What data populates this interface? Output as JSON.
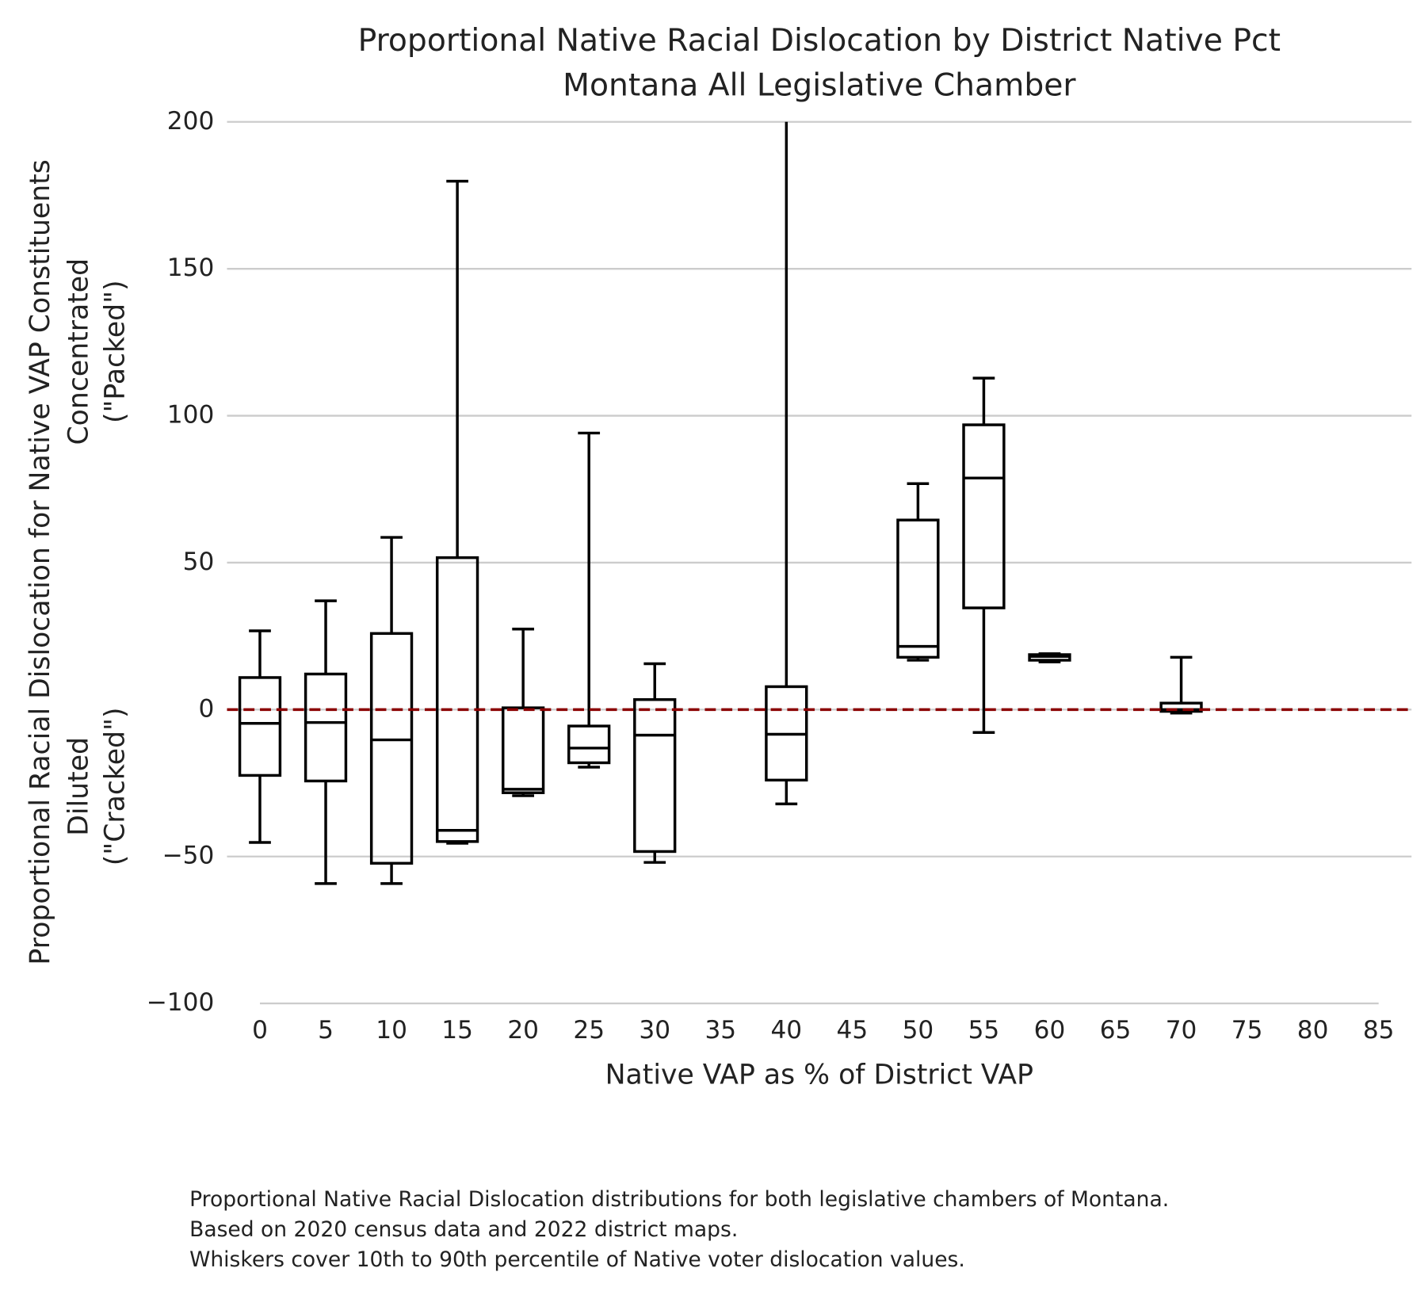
{
  "chart_data": {
    "type": "box",
    "title": "Proportional Native Racial Dislocation by District Native Pct",
    "subtitle": "Montana All Legislative Chamber",
    "x_label": "Native VAP as % of District VAP",
    "y_label": "Proportional Racial Dislocation for Native VAP Constituents",
    "upper_label": [
      "Concentrated",
      "(\"Packed\")"
    ],
    "lower_label": [
      "Diluted",
      "(\"Cracked\")"
    ],
    "notes": [
      "Proportional Native Racial Dislocation distributions for both legislative chambers of Montana.",
      "Based on 2020 census data and 2022 district maps.",
      "Whiskers cover 10th to 90th percentile of Native voter dislocation values."
    ],
    "xlim": [
      -2.5,
      87.5
    ],
    "xticks": [
      0,
      5,
      10,
      15,
      20,
      25,
      30,
      35,
      40,
      45,
      50,
      55,
      60,
      65,
      70,
      75,
      80,
      85
    ],
    "ylim": [
      -100,
      200
    ],
    "yticks": [
      {
        "value": -100,
        "label": "−100"
      },
      {
        "value": -50,
        "label": "−50"
      },
      0,
      50,
      100,
      150,
      200
    ],
    "grid": true,
    "reference_line": {
      "value": 0,
      "color": "#8b0000"
    },
    "color": "#000000",
    "boxes": [
      {
        "x": 0,
        "whislo": -45.2,
        "q1": -22.4,
        "med": -4.7,
        "q3": 10.9,
        "whishi": 26.8
      },
      {
        "x": 5,
        "whislo": -59.2,
        "q1": -24.3,
        "med": -4.4,
        "q3": 12.1,
        "whishi": 37
      },
      {
        "x": 10,
        "whislo": -59.2,
        "q1": -52.3,
        "med": -10.3,
        "q3": 25.9,
        "whishi": 58.6
      },
      {
        "x": 15,
        "whislo": -45.5,
        "q1": -44.9,
        "med": -41.1,
        "q3": 51.7,
        "whishi": 179.8
      },
      {
        "x": 20,
        "whislo": -29.3,
        "q1": -28.3,
        "med": -27.1,
        "q3": 0.6,
        "whishi": 27.4
      },
      {
        "x": 25,
        "whislo": -19.6,
        "q1": -18.1,
        "med": -13.1,
        "q3": -5.6,
        "whishi": 94.1
      },
      {
        "x": 30,
        "whislo": -52,
        "q1": -48.3,
        "med": -8.7,
        "q3": 3.4,
        "whishi": 15.6
      },
      {
        "x": 40,
        "whislo": -32.1,
        "q1": -24,
        "med": -8.4,
        "q3": 7.8,
        "whishi": 215
      },
      {
        "x": 50,
        "whislo": 16.8,
        "q1": 17.8,
        "med": 21.5,
        "q3": 64.5,
        "whishi": 76.9
      },
      {
        "x": 55,
        "whislo": -7.8,
        "q1": 34.6,
        "med": 78.8,
        "q3": 96.9,
        "whishi": 112.8
      },
      {
        "x": 60,
        "whislo": 16.2,
        "q1": 16.8,
        "med": 18.1,
        "q3": 18.7,
        "whishi": 19
      },
      {
        "x": 70,
        "whislo": -1.2,
        "q1": -0.6,
        "med": 0,
        "q3": 2.2,
        "whishi": 17.8
      }
    ]
  }
}
